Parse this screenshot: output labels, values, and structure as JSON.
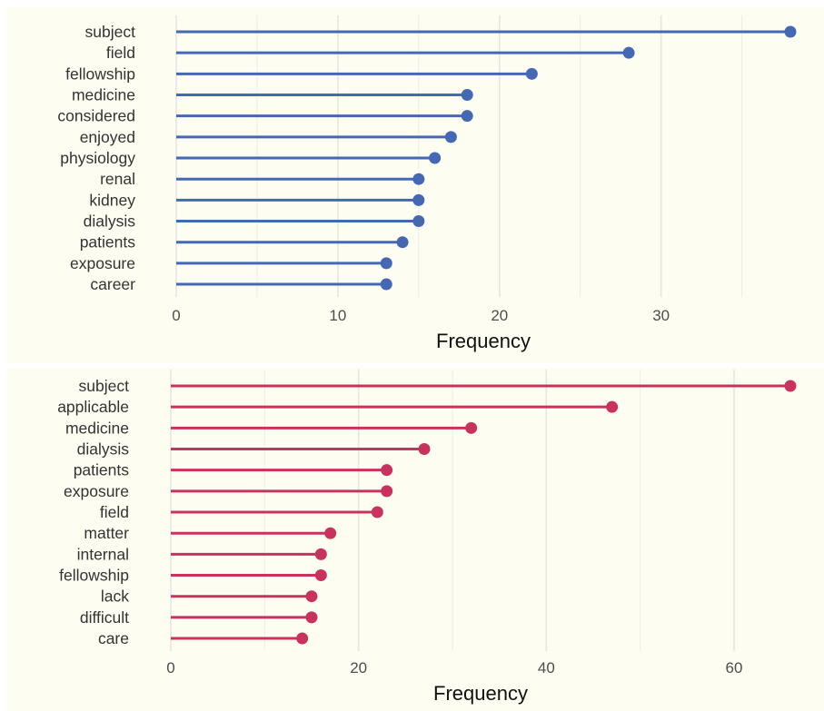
{
  "chart_data": [
    {
      "type": "lollipop",
      "orientation": "horizontal",
      "color": "#4468b4",
      "xlabel": "Frequency",
      "ylabel": "",
      "xlim": [
        0,
        38
      ],
      "xticks": [
        0,
        10,
        20,
        30
      ],
      "grid": true,
      "categories": [
        "subject",
        "field",
        "fellowship",
        "medicine",
        "considered",
        "enjoyed",
        "physiology",
        "renal",
        "kidney",
        "dialysis",
        "patients",
        "exposure",
        "career"
      ],
      "values": [
        38,
        28,
        22,
        18,
        18,
        17,
        16,
        15,
        15,
        15,
        14,
        13,
        13
      ]
    },
    {
      "type": "lollipop",
      "orientation": "horizontal",
      "color": "#c9325f",
      "xlabel": "Frequency",
      "ylabel": "",
      "xlim": [
        0,
        66
      ],
      "xticks": [
        0,
        20,
        40,
        60
      ],
      "grid": true,
      "categories": [
        "subject",
        "applicable",
        "medicine",
        "dialysis",
        "patients",
        "exposure",
        "field",
        "matter",
        "internal",
        "fellowship",
        "lack",
        "difficult",
        "care"
      ],
      "values": [
        66,
        47,
        32,
        27,
        23,
        23,
        22,
        17,
        16,
        16,
        15,
        15,
        14
      ]
    }
  ]
}
